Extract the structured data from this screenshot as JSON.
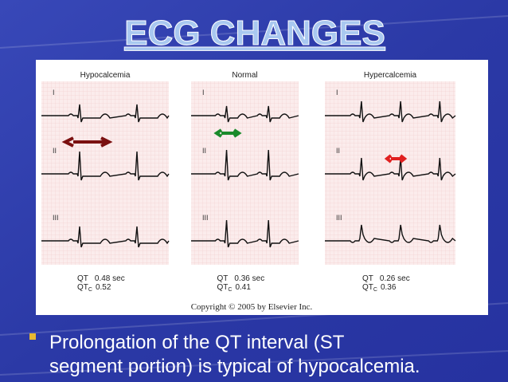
{
  "title": "ECG CHANGES",
  "leads": [
    "I",
    "II",
    "III"
  ],
  "panels": [
    {
      "name": "Hypocalcemia",
      "qt": {
        "label": "QT",
        "value": "0.48 sec"
      },
      "qtc": {
        "label": "QT",
        "sub": "C",
        "value": "0.52"
      }
    },
    {
      "name": "Normal",
      "qt": {
        "label": "QT",
        "value": "0.36 sec"
      },
      "qtc": {
        "label": "QT",
        "sub": "C",
        "value": "0.41"
      }
    },
    {
      "name": "Hypercalcemia",
      "qt": {
        "label": "QT",
        "value": "0.26 sec"
      },
      "qtc": {
        "label": "QT",
        "sub": "C",
        "value": "0.36"
      }
    }
  ],
  "copyright": "Copyright © 2005 by Elsevier Inc.",
  "bullet": {
    "line1": "Prolongation of the QT interval (ST",
    "line2": "segment portion) is typical of hypocalcemia."
  }
}
